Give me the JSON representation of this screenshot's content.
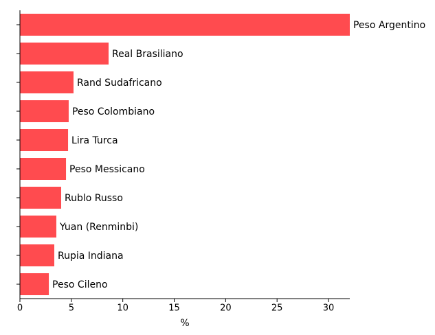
{
  "chart_data": {
    "type": "barh",
    "categories": [
      "Peso Argentino",
      "Real Brasiliano",
      "Rand Sudafricano",
      "Peso Colombiano",
      "Lira Turca",
      "Peso Messicano",
      "Rublo Russo",
      "Yuan (Renminbi)",
      "Rupia Indiana",
      "Peso Cileno"
    ],
    "values": [
      32.07,
      8.62,
      5.21,
      4.74,
      4.68,
      4.48,
      4.01,
      3.54,
      3.34,
      2.81
    ],
    "color": "#ff4b4f",
    "xlabel": "%",
    "xlim": [
      0,
      32.07
    ],
    "xticks": [
      0,
      5,
      10,
      15,
      20,
      25,
      30
    ]
  }
}
